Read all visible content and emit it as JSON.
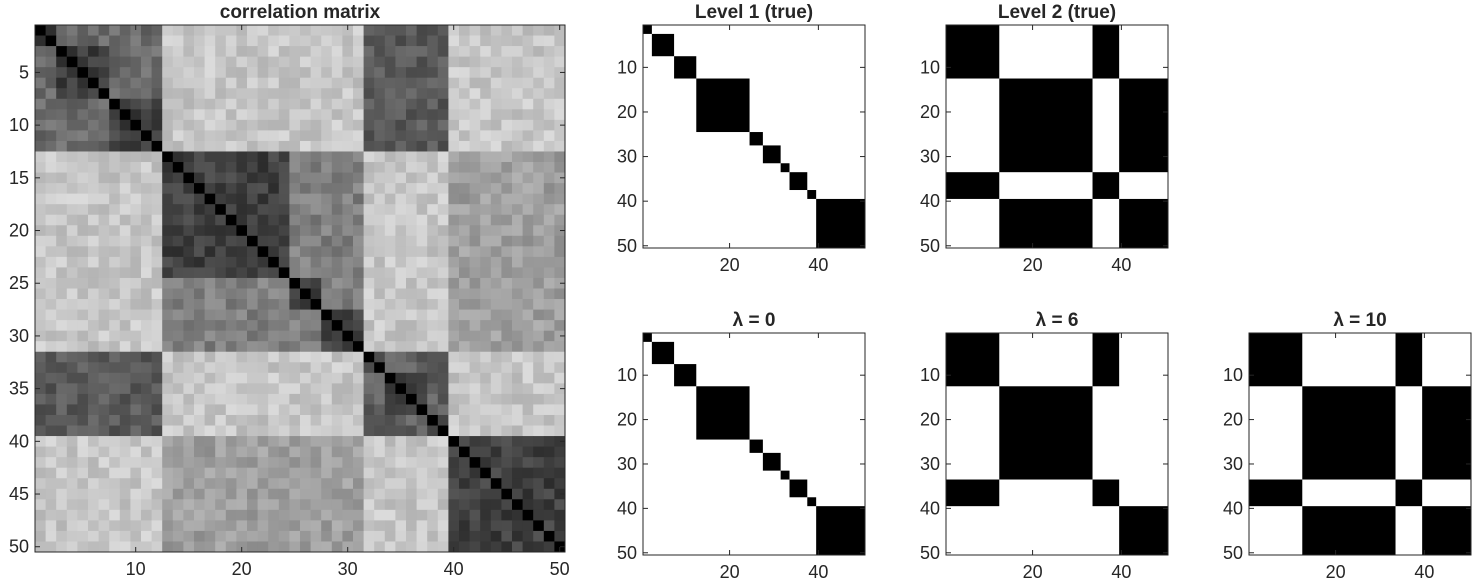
{
  "chart_data": [
    {
      "type": "heatmap",
      "title": "correlation matrix",
      "n": 50,
      "colormap": "gray",
      "diagonal": 0.0,
      "groups": [
        [
          1,
          2
        ],
        [
          3,
          7
        ],
        [
          8,
          12
        ],
        [
          13,
          24
        ],
        [
          25,
          27
        ],
        [
          28,
          31
        ],
        [
          32,
          33
        ],
        [
          34,
          37
        ],
        [
          38,
          39
        ],
        [
          40,
          50
        ]
      ],
      "block_levels": {
        "within_group": 0.25,
        "groups_1_to_3": 0.42,
        "groups_4_to_6": 0.5,
        "groups_7_to_9": 0.38,
        "group_10": 0.3,
        "between_supergroups": 0.78,
        "supergroup_1_vs_3": 0.35
      },
      "xticks": [
        10,
        20,
        30,
        40,
        50
      ],
      "yticks": [
        5,
        10,
        15,
        20,
        25,
        30,
        35,
        40,
        45,
        50
      ],
      "xlim": [
        0.5,
        50.5
      ],
      "ylim": [
        0.5,
        50.5
      ],
      "grid": false
    },
    {
      "type": "heatmap",
      "title": "Level 1 (true)",
      "blocks": [
        [
          1,
          2
        ],
        [
          3,
          7
        ],
        [
          8,
          12
        ],
        [
          13,
          24
        ],
        [
          25,
          27
        ],
        [
          28,
          31
        ],
        [
          32,
          33
        ],
        [
          34,
          37
        ],
        [
          38,
          39
        ],
        [
          40,
          50
        ]
      ],
      "xticks": [
        20,
        40
      ],
      "yticks": [
        10,
        20,
        30,
        40,
        50
      ]
    },
    {
      "type": "heatmap",
      "title": "Level 2 (true)",
      "blocks": [
        [
          1,
          12
        ],
        [
          13,
          33
        ],
        [
          34,
          39
        ],
        [
          40,
          50
        ]
      ],
      "linked_blocks": [
        [
          1,
          12,
          34,
          39
        ],
        [
          13,
          33,
          40,
          50
        ]
      ],
      "xticks": [
        20,
        40
      ],
      "yticks": [
        10,
        20,
        30,
        40,
        50
      ]
    },
    {
      "type": "heatmap",
      "title": "λ = 0",
      "blocks": [
        [
          1,
          2
        ],
        [
          3,
          7
        ],
        [
          8,
          12
        ],
        [
          13,
          24
        ],
        [
          25,
          27
        ],
        [
          28,
          31
        ],
        [
          32,
          33
        ],
        [
          34,
          37
        ],
        [
          38,
          39
        ],
        [
          40,
          50
        ]
      ],
      "xticks": [
        20,
        40
      ],
      "yticks": [
        10,
        20,
        30,
        40,
        50
      ]
    },
    {
      "type": "heatmap",
      "title": "λ = 6",
      "blocks": [
        [
          1,
          12
        ],
        [
          13,
          33
        ],
        [
          34,
          39
        ],
        [
          40,
          50
        ]
      ],
      "linked_blocks": [
        [
          1,
          12,
          34,
          39
        ]
      ],
      "xticks": [
        20,
        40
      ],
      "yticks": [
        10,
        20,
        30,
        40,
        50
      ]
    },
    {
      "type": "heatmap",
      "title": "λ = 10",
      "blocks": [
        [
          1,
          12
        ],
        [
          13,
          33
        ],
        [
          34,
          39
        ],
        [
          40,
          50
        ]
      ],
      "linked_blocks": [
        [
          1,
          12,
          34,
          39
        ],
        [
          13,
          33,
          40,
          50
        ]
      ],
      "xticks": [
        20,
        40
      ],
      "yticks": [
        10,
        20,
        30,
        40,
        50
      ]
    }
  ]
}
